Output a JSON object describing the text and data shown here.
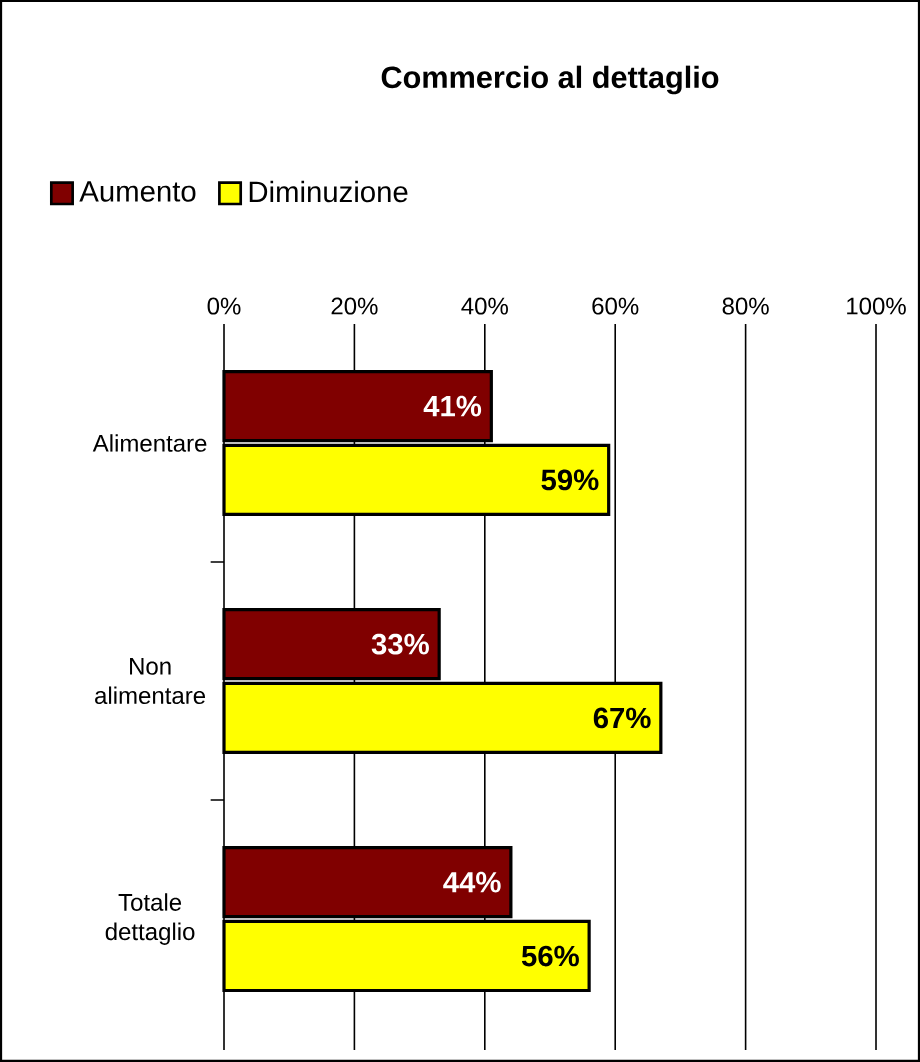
{
  "chart_data": {
    "type": "bar",
    "orientation": "horizontal",
    "title": "Commercio al dettaglio",
    "categories": [
      "Alimentare",
      "Non alimentare",
      "Totale dettaglio"
    ],
    "series": [
      {
        "name": "Aumento",
        "color": "#800000",
        "values": [
          41,
          33,
          44
        ],
        "value_labels": [
          "41%",
          "33%",
          "44%"
        ]
      },
      {
        "name": "Diminuzione",
        "color": "#ffff00",
        "values": [
          59,
          67,
          56
        ],
        "value_labels": [
          "59%",
          "67%",
          "56%"
        ]
      }
    ],
    "xlim": [
      0,
      100
    ],
    "xticks": [
      {
        "value": 0,
        "label": "0%"
      },
      {
        "value": 20,
        "label": "20%"
      },
      {
        "value": 40,
        "label": "40%"
      },
      {
        "value": 60,
        "label": "60%"
      },
      {
        "value": 80,
        "label": "80%"
      },
      {
        "value": 100,
        "label": "100%"
      }
    ],
    "grid": "x",
    "legend": "top left"
  }
}
